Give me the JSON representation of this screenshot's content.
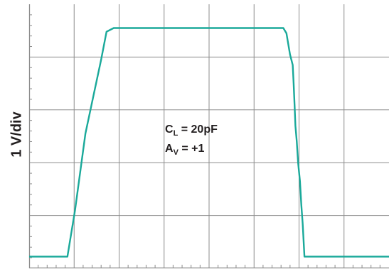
{
  "chart_data": {
    "type": "line",
    "ylabel": "1 V/div",
    "xlabel": "",
    "title": "",
    "grid": true,
    "x_divisions": 8,
    "y_divisions": 5,
    "annotation": {
      "line1": {
        "symbol": "C",
        "sub": "L",
        "rest": " = 20pF"
      },
      "line2": {
        "symbol": "A",
        "sub": "V",
        "rest": " = +1"
      }
    },
    "series": [
      {
        "color": "#1aa99a",
        "points": [
          [
            0,
            -0.28
          ],
          [
            0.85,
            -0.28
          ],
          [
            1.02,
            0.6
          ],
          [
            1.25,
            2.05
          ],
          [
            1.45,
            2.85
          ],
          [
            1.6,
            3.45
          ],
          [
            1.72,
            3.98
          ],
          [
            1.88,
            4.05
          ],
          [
            2.3,
            4.05
          ],
          [
            5.65,
            4.05
          ],
          [
            5.72,
            3.95
          ],
          [
            5.76,
            3.75
          ],
          [
            5.8,
            3.55
          ],
          [
            5.86,
            3.35
          ],
          [
            5.88,
            3.0
          ],
          [
            5.9,
            2.6
          ],
          [
            5.92,
            2.2
          ],
          [
            5.95,
            1.9
          ],
          [
            5.98,
            1.5
          ],
          [
            6.02,
            1.15
          ],
          [
            6.05,
            0.7
          ],
          [
            6.08,
            0.35
          ],
          [
            6.1,
            0.05
          ],
          [
            6.12,
            -0.28
          ],
          [
            8,
            -0.28
          ]
        ]
      }
    ]
  }
}
